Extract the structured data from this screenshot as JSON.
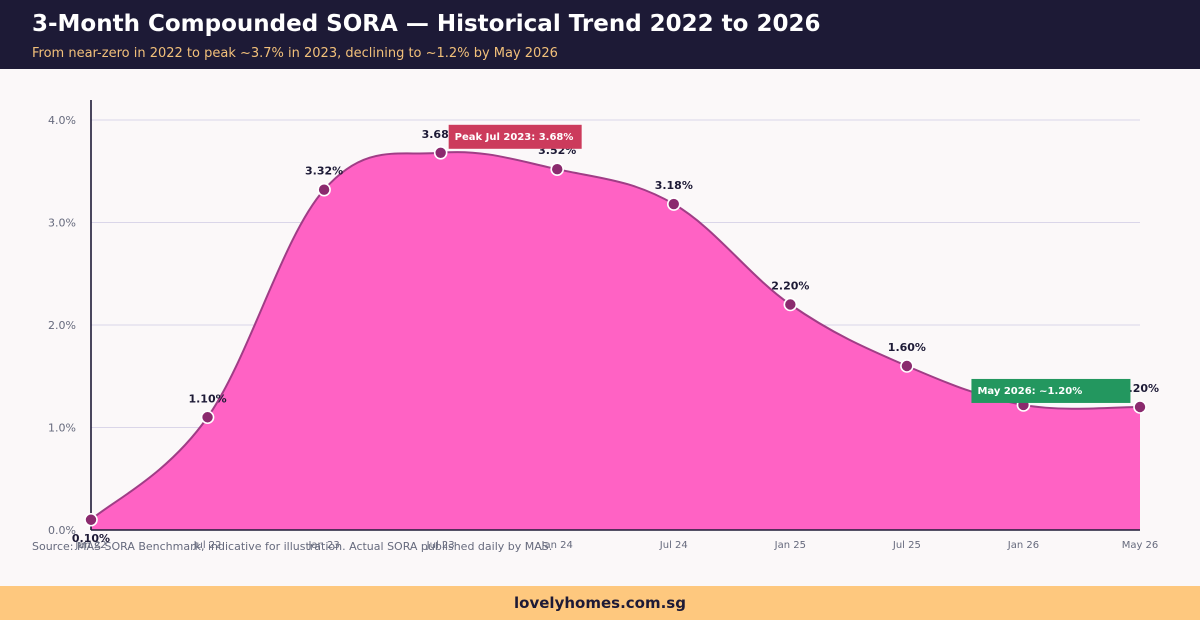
{
  "header": {
    "title": "3-Month Compounded SORA — Historical Trend 2022 to 2026",
    "subtitle": "From near-zero in 2022 to peak ~3.7% in 2023, declining to ~1.2% by May 2026"
  },
  "source_note": "Source: MAS SORA Benchmark, indicative for illustration. Actual SORA published daily by MAS.",
  "footer": {
    "brand": "lovelyhomes.com.sg"
  },
  "colors": {
    "header_bg": "#1d1a36",
    "area_fill": "#ff62c4",
    "line": "#a03d86",
    "point": "#8b2a6e",
    "peak_callout": "#cc3b5c",
    "latest_callout": "#23975f",
    "footer_bg": "#fec87e"
  },
  "chart_data": {
    "type": "area",
    "x": [
      "Jan 22",
      "Jul 22",
      "Jan 23",
      "Jul 23",
      "Jan 24",
      "Jul 24",
      "Jan 25",
      "Jul 25",
      "Jan 26",
      "May 26"
    ],
    "series": [
      {
        "values": [
          0.1,
          1.1,
          3.32,
          3.68,
          3.52,
          3.18,
          2.2,
          1.6,
          1.22,
          1.2
        ]
      }
    ],
    "data_labels": [
      "0.10%",
      "1.10%",
      "3.32%",
      "3.68%",
      "3.52%",
      "3.18%",
      "2.20%",
      "1.60%",
      "",
      "1.20%"
    ],
    "ylim": [
      0,
      4
    ],
    "yticks": [
      0,
      1,
      2,
      3,
      4
    ],
    "ytick_labels": [
      "0.0%",
      "1.0%",
      "2.0%",
      "3.0%",
      "4.0%"
    ],
    "grid": true,
    "annotations": [
      {
        "text": "Peak Jul 2023: 3.68%",
        "at": "Jul 23",
        "color": "#cc3b5c"
      },
      {
        "text": "May 2026: ~1.20%",
        "at": "Jan 26",
        "color": "#23975f"
      }
    ]
  }
}
